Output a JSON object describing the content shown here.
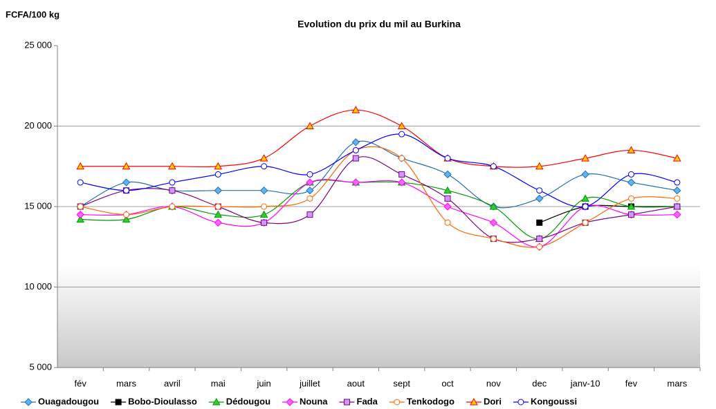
{
  "chart_data": {
    "type": "line",
    "title": "Evolution du prix du mil au Burkina",
    "y_label": "FCFA/100 kg",
    "categories": [
      "fév",
      "mars",
      "avril",
      "mai",
      "juin",
      "juillet",
      "aout",
      "sept",
      "oct",
      "nov",
      "dec",
      "janv-10",
      "fev",
      "mars"
    ],
    "ylim": [
      5000,
      25000
    ],
    "yticks": [
      {
        "value": 5000,
        "label": "5 000"
      },
      {
        "value": 10000,
        "label": "10 000"
      },
      {
        "value": 15000,
        "label": "15 000"
      },
      {
        "value": 20000,
        "label": "20 000"
      },
      {
        "value": 25000,
        "label": "25 000"
      }
    ],
    "grid": true,
    "smooth": true,
    "legend": "bottom",
    "series": [
      {
        "name": "Ouagadougou",
        "color": "#1f6fb5",
        "marker": "diamond",
        "marker_fill": "#5fb4f0",
        "values": [
          15000,
          16500,
          16000,
          16000,
          16000,
          16000,
          19000,
          18000,
          17000,
          15000,
          15500,
          17000,
          16500,
          16000
        ]
      },
      {
        "name": "Bobo-Dioulasso",
        "color": "#000000",
        "marker": "square",
        "marker_fill": "#000000",
        "values": [
          null,
          null,
          null,
          null,
          null,
          null,
          null,
          null,
          null,
          null,
          14000,
          15000,
          15000,
          15000
        ]
      },
      {
        "name": "Dédougou",
        "color": "#009900",
        "marker": "triangle",
        "marker_fill": "#33cc33",
        "values": [
          14200,
          14200,
          15000,
          14500,
          14500,
          16500,
          16500,
          16500,
          16000,
          15000,
          13000,
          15500,
          15000,
          15000
        ]
      },
      {
        "name": "Nouna",
        "color": "#ff00ff",
        "marker": "diamond",
        "marker_fill": "#ff66ff",
        "values": [
          14500,
          14500,
          15000,
          14000,
          14000,
          16500,
          16500,
          16500,
          15000,
          14000,
          12500,
          15000,
          14500,
          14500
        ]
      },
      {
        "name": "Fada",
        "color": "#800080",
        "marker": "square",
        "marker_fill": "#cc99ff",
        "values": [
          15000,
          16000,
          16000,
          15000,
          14000,
          14500,
          18000,
          17000,
          15500,
          13000,
          13000,
          14000,
          14500,
          15000
        ]
      },
      {
        "name": "Tenkodogo",
        "color": "#ff6600",
        "marker": "circle",
        "marker_fill": "#ffffff",
        "values": [
          15000,
          14500,
          15000,
          15000,
          15000,
          15500,
          18500,
          18000,
          14000,
          13000,
          12500,
          14000,
          15500,
          15500
        ]
      },
      {
        "name": "Dori",
        "color": "#ff0000",
        "marker": "triangle",
        "marker_fill": "#ffcc00",
        "values": [
          17500,
          17500,
          17500,
          17500,
          18000,
          20000,
          21000,
          20000,
          18000,
          17500,
          17500,
          18000,
          18500,
          18000
        ]
      },
      {
        "name": "Kongoussi",
        "color": "#0000ff",
        "marker": "circle",
        "marker_fill": "#ffffff",
        "values": [
          16500,
          16000,
          16500,
          17000,
          17500,
          17000,
          18500,
          19500,
          18000,
          17500,
          16000,
          15000,
          17000,
          16500
        ]
      }
    ]
  }
}
